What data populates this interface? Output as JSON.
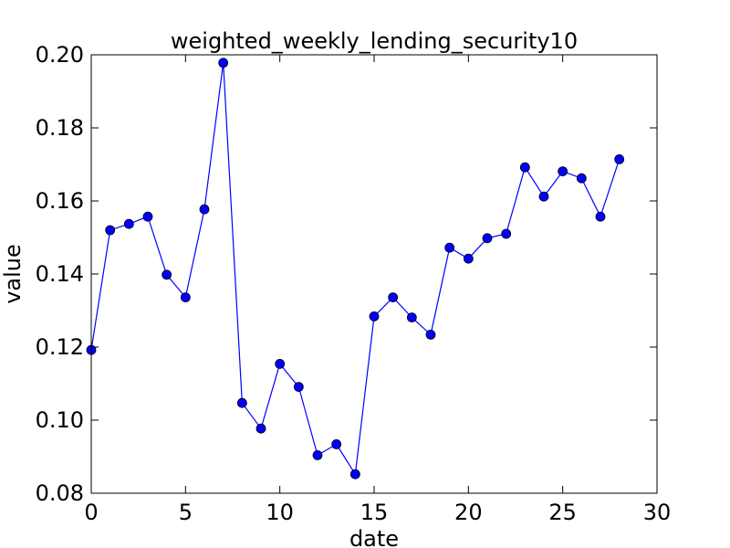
{
  "chart_data": {
    "type": "line",
    "title": "weighted_weekly_lending_security10",
    "xlabel": "date",
    "ylabel": "value",
    "xlim": [
      0,
      30
    ],
    "ylim": [
      0.08,
      0.2
    ],
    "xticks": [
      0,
      5,
      10,
      15,
      20,
      25,
      30
    ],
    "yticks": [
      0.08,
      0.1,
      0.12,
      0.14,
      0.16,
      0.18,
      0.2
    ],
    "xtick_labels": [
      "0",
      "5",
      "10",
      "15",
      "20",
      "25",
      "30"
    ],
    "ytick_labels": [
      "0.08",
      "0.10",
      "0.12",
      "0.14",
      "0.16",
      "0.18",
      "0.20"
    ],
    "grid": false,
    "series": [
      {
        "color": "#0000ff",
        "marker": "circle",
        "x": [
          0,
          1,
          2,
          3,
          4,
          5,
          6,
          7,
          8,
          9,
          10,
          11,
          12,
          13,
          14,
          15,
          16,
          17,
          18,
          19,
          20,
          21,
          22,
          23,
          24,
          25,
          26,
          27,
          28
        ],
        "y": [
          0.1192,
          0.152,
          0.1537,
          0.1557,
          0.1398,
          0.1336,
          0.1577,
          0.1978,
          0.1047,
          0.0977,
          0.1154,
          0.1091,
          0.0904,
          0.0934,
          0.0852,
          0.1284,
          0.1336,
          0.1281,
          0.1234,
          0.1472,
          0.1442,
          0.1498,
          0.151,
          0.1692,
          0.1612,
          0.1681,
          0.1662,
          0.1557,
          0.1714
        ]
      }
    ]
  }
}
